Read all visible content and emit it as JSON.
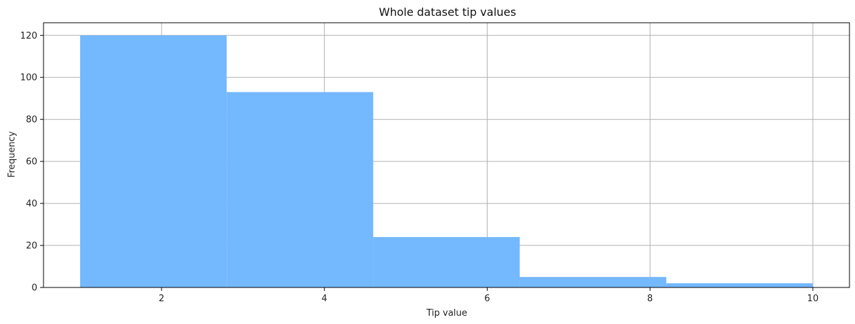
{
  "chart_data": {
    "type": "bar",
    "title": "Whole dataset tip values",
    "xlabel": "Tip value",
    "ylabel": "Frequency",
    "bins": [
      {
        "start": 1.0,
        "end": 2.8,
        "value": 120
      },
      {
        "start": 2.8,
        "end": 4.6,
        "value": 93
      },
      {
        "start": 4.6,
        "end": 6.4,
        "value": 24
      },
      {
        "start": 6.4,
        "end": 8.2,
        "value": 5
      },
      {
        "start": 8.2,
        "end": 10.0,
        "value": 2
      }
    ],
    "xlim": [
      0.55,
      10.45
    ],
    "ylim": [
      0,
      126
    ],
    "xticks": [
      2,
      4,
      6,
      8,
      10
    ],
    "yticks": [
      0,
      20,
      40,
      60,
      80,
      100,
      120
    ],
    "grid": true,
    "bar_color": "#74b8fd"
  }
}
